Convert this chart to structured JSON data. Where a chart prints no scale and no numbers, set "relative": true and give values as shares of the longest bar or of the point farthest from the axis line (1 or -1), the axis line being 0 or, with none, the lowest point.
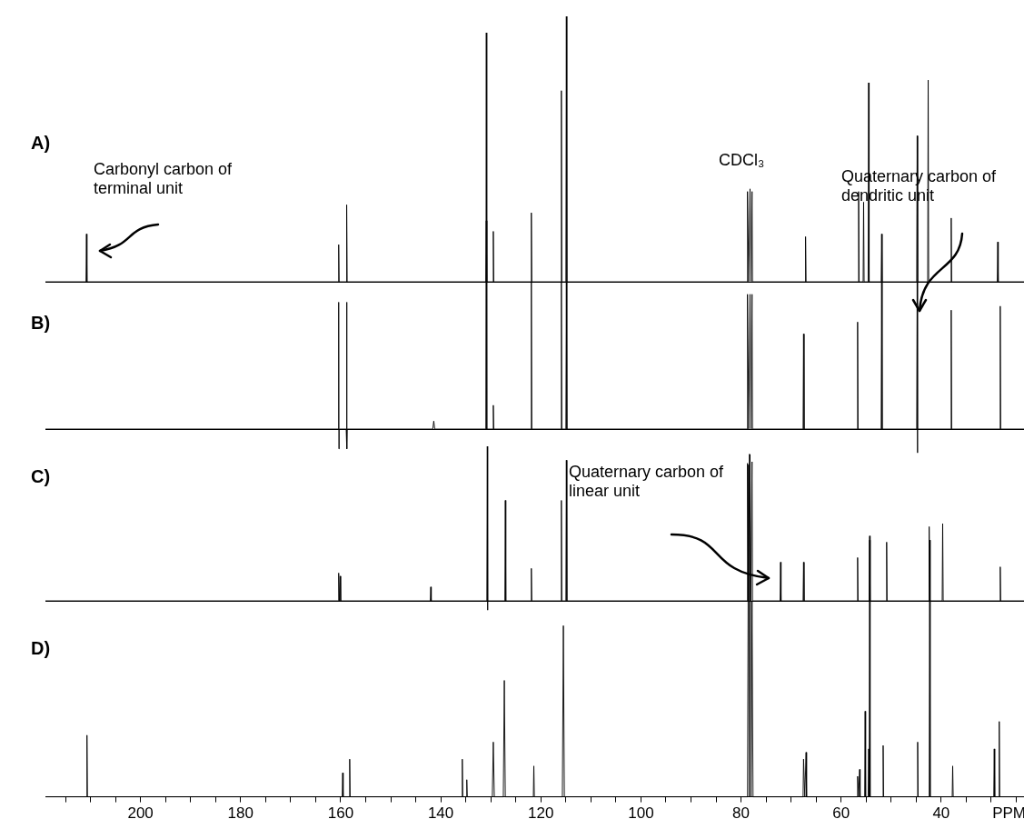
{
  "chart_data": [
    {
      "type": "line",
      "title": "A)",
      "relative": true,
      "color": "#000000",
      "tick_labels": false,
      "xlim": [
        219,
        22
      ],
      "annotations": [
        "Carbonyl carbon of terminal unit",
        "CDCl₃",
        "Quaternary carbon of dendritic unit"
      ],
      "x": [
        219,
        210.9,
        210.8,
        210.7,
        160.5,
        160.4,
        160.3,
        158.9,
        158.8,
        158.7,
        131,
        130.9,
        130.8,
        129.6,
        129.5,
        129.4,
        122,
        121.9,
        121.8,
        116,
        115.9,
        115.8,
        115,
        114.9,
        114.8,
        78.8,
        78.7,
        78.45,
        78.2,
        78,
        77.8,
        77.7,
        67.2,
        67.1,
        67,
        56.6,
        56.5,
        56.4,
        55.6,
        55.5,
        55.4,
        54.6,
        54.5,
        54.4,
        52,
        51.9,
        51.8,
        44.9,
        44.8,
        44.7,
        42.7,
        42.6,
        42.5,
        38.1,
        38,
        37.9,
        28.8,
        28.7,
        28.6,
        22
      ],
      "values": [
        0,
        0,
        0.18,
        0,
        0,
        0.14,
        0,
        0,
        0.29,
        0,
        0,
        0.23,
        0,
        0,
        0.19,
        0,
        0,
        0.26,
        0,
        0,
        0.72,
        0,
        0,
        1,
        0,
        0,
        0.34,
        0,
        0.35,
        0,
        0.34,
        0,
        0,
        0.17,
        0,
        0,
        0.34,
        0,
        0,
        0.3,
        0,
        0,
        0.75,
        0,
        0,
        0.18,
        0,
        0,
        0.55,
        0,
        0,
        0.76,
        0,
        0,
        0.24,
        0,
        0,
        0.15,
        0,
        0
      ]
    },
    {
      "type": "line",
      "title": "B)",
      "relative": true,
      "color": "#000000",
      "tick_labels": false,
      "xlim": [
        219,
        22
      ],
      "x": [
        219,
        160.5,
        160.4,
        160.35,
        160.3,
        158.9,
        158.8,
        158.75,
        158.7,
        141.6,
        141.4,
        141.2,
        131,
        130.9,
        130.8,
        129.6,
        129.5,
        129.4,
        122,
        121.9,
        121.8,
        116,
        115.9,
        115.8,
        115,
        114.9,
        114.8,
        78.8,
        78.7,
        78.45,
        78.2,
        78,
        77.8,
        77.7,
        67.6,
        67.5,
        67.4,
        56.8,
        56.7,
        56.6,
        52,
        51.9,
        51.8,
        44.9,
        44.8,
        44.75,
        44.7,
        38.1,
        38,
        37.9,
        28.3,
        28.2,
        28.1,
        22
      ],
      "values": [
        0,
        0,
        0.32,
        -0.05,
        0,
        0,
        0.32,
        -0.05,
        0,
        0,
        0.02,
        0,
        0,
        1,
        0,
        0,
        0.06,
        0,
        0,
        0.37,
        0,
        0,
        0.37,
        0,
        0,
        0.37,
        0,
        0,
        0.34,
        0,
        0.34,
        0,
        0.34,
        0,
        0,
        0.24,
        0,
        0,
        0.27,
        0,
        0,
        0.37,
        0,
        0,
        0.37,
        -0.06,
        0,
        0,
        0.3,
        0,
        0,
        0.31,
        0,
        0
      ]
    },
    {
      "type": "line",
      "title": "C)",
      "relative": true,
      "color": "#000000",
      "tick_labels": false,
      "xlim": [
        219,
        22
      ],
      "annotations": [
        "Quaternary carbon of linear unit"
      ],
      "x": [
        219,
        160.5,
        160.4,
        160.25,
        160.1,
        160,
        142.1,
        142,
        141.9,
        130.8,
        130.7,
        130.65,
        130.6,
        127.2,
        127.1,
        127,
        122,
        121.9,
        121.8,
        116,
        115.9,
        115.8,
        115,
        114.9,
        114.8,
        78.8,
        78.7,
        78.5,
        78.3,
        78.05,
        77.8,
        77.7,
        72.2,
        72.1,
        72,
        67.6,
        67.5,
        67.4,
        56.8,
        56.7,
        56.6,
        54.4,
        54.3,
        54.2,
        51,
        50.9,
        50.8,
        42.5,
        42.4,
        42.3,
        39.8,
        39.7,
        39.6,
        28.3,
        28.2,
        28.1,
        22
      ],
      "values": [
        0,
        0,
        0.18,
        0,
        0.16,
        0,
        0,
        0.09,
        0,
        0,
        1,
        -0.06,
        0,
        0,
        0.65,
        0,
        0,
        0.21,
        0,
        0,
        0.65,
        0,
        0,
        0.91,
        0,
        0,
        0.89,
        0,
        0.95,
        0,
        0.9,
        0,
        0,
        0.25,
        0,
        0,
        0.25,
        0,
        0,
        0.28,
        0,
        0,
        0.42,
        0,
        0,
        0.38,
        0,
        0,
        0.48,
        0,
        0,
        0.5,
        0,
        0,
        0.22,
        0,
        0
      ]
    },
    {
      "type": "line",
      "title": "D)",
      "relative": true,
      "color": "#000000",
      "tick_labels": "x",
      "xlim": [
        219,
        22
      ],
      "xlabel": "PPM",
      "xticks": [
        {
          "value": 215,
          "label": null
        },
        {
          "value": 210,
          "label": null
        },
        {
          "value": 205,
          "label": null
        },
        200,
        {
          "value": 195,
          "label": null
        },
        {
          "value": 190,
          "label": null
        },
        {
          "value": 185,
          "label": null
        },
        180,
        {
          "value": 175,
          "label": null
        },
        {
          "value": 170,
          "label": null
        },
        {
          "value": 165,
          "label": null
        },
        160,
        {
          "value": 155,
          "label": null
        },
        {
          "value": 150,
          "label": null
        },
        {
          "value": 145,
          "label": null
        },
        140,
        {
          "value": 135,
          "label": null
        },
        {
          "value": 130,
          "label": null
        },
        {
          "value": 125,
          "label": null
        },
        120,
        {
          "value": 115,
          "label": null
        },
        {
          "value": 110,
          "label": null
        },
        {
          "value": 105,
          "label": null
        },
        100,
        {
          "value": 95,
          "label": null
        },
        {
          "value": 90,
          "label": null
        },
        {
          "value": 85,
          "label": null
        },
        80,
        {
          "value": 75,
          "label": null
        },
        {
          "value": 70,
          "label": null
        },
        {
          "value": 65,
          "label": null
        },
        60,
        {
          "value": 55,
          "label": null
        },
        {
          "value": 50,
          "label": null
        },
        {
          "value": 45,
          "label": null
        },
        40,
        {
          "value": 35,
          "label": null
        },
        {
          "value": 30,
          "label": null
        },
        {
          "value": 25,
          "label": null
        }
      ],
      "x": [
        219,
        210.8,
        210.7,
        210.6,
        159.7,
        159.6,
        159.5,
        158.3,
        158.2,
        158.1,
        135.8,
        135.7,
        135.6,
        134.9,
        134.8,
        134.7,
        129.7,
        129.5,
        129.3,
        127.5,
        127.3,
        127.1,
        121.5,
        121.4,
        121.3,
        115.7,
        115.5,
        115.3,
        78.7,
        78.5,
        78.35,
        78.2,
        78,
        77.8,
        77.6,
        67.6,
        67.5,
        67.25,
        67,
        66.9,
        56.8,
        56.7,
        56.5,
        56.3,
        56.2,
        55.3,
        55.2,
        55.1,
        54.6,
        54.5,
        54.4,
        54.3,
        54.2,
        51.7,
        51.6,
        51.5,
        44.8,
        44.7,
        44.6,
        42.4,
        42.3,
        42.2,
        37.8,
        37.7,
        37.6,
        29.5,
        29.4,
        29.3,
        28.5,
        28.4,
        28.3,
        22
      ],
      "values": [
        0,
        0,
        0.18,
        0,
        0,
        0.07,
        0,
        0,
        0.11,
        0,
        0,
        0.11,
        0,
        0,
        0.05,
        0,
        0,
        0.16,
        0,
        0,
        0.34,
        0,
        0,
        0.09,
        0,
        0,
        0.5,
        0,
        0,
        0.97,
        0,
        1,
        0,
        0.57,
        0,
        0,
        0.11,
        0,
        0.13,
        0,
        0,
        0.06,
        0,
        0.08,
        0,
        0,
        0.25,
        0,
        0,
        0.14,
        0,
        0.75,
        0,
        0,
        0.15,
        0,
        0,
        0.16,
        0,
        0,
        0.75,
        0,
        0,
        0.09,
        0,
        0,
        0.14,
        0,
        0,
        0.22,
        0,
        0
      ]
    }
  ]
}
